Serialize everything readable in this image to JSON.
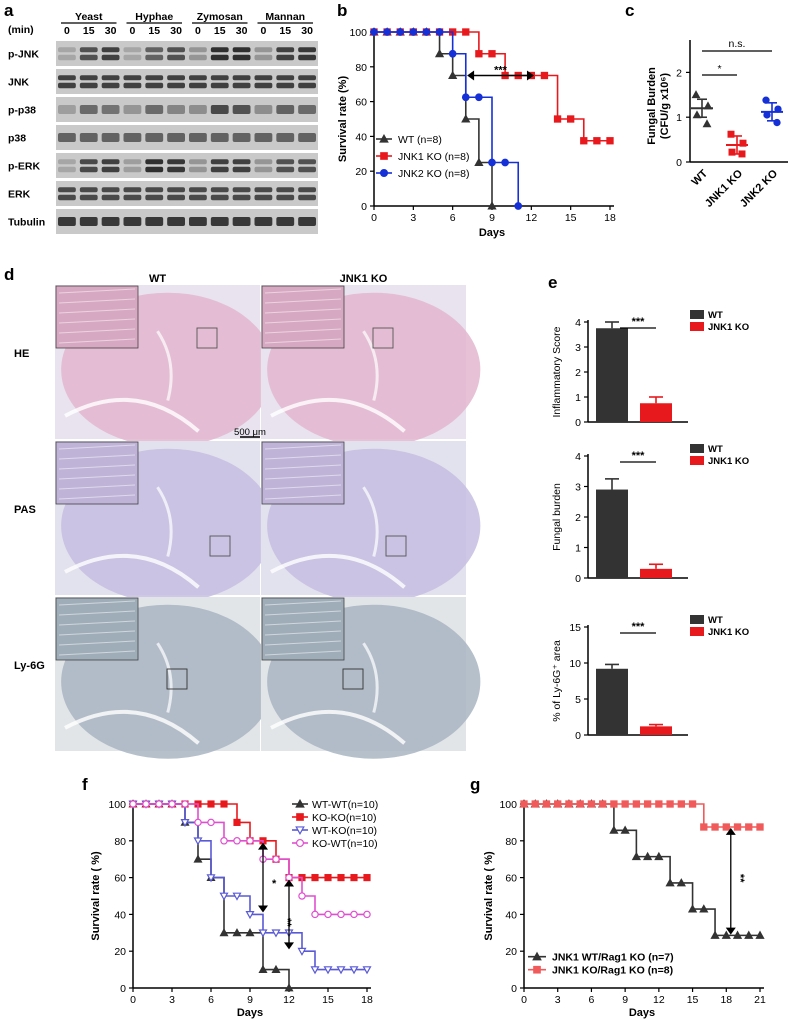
{
  "panels": {
    "a": "a",
    "b": "b",
    "c": "c",
    "d": "d",
    "e": "e",
    "f": "f",
    "g": "g"
  },
  "panel_a": {
    "min_label": "(min)",
    "groups": [
      "Yeast",
      "Hyphae",
      "Zymosan",
      "Mannan"
    ],
    "timepoints": [
      "0",
      "15",
      "30"
    ],
    "rows": [
      "p-JNK",
      "JNK",
      "p-p38",
      "p38",
      "p-ERK",
      "ERK",
      "Tubulin"
    ]
  },
  "panel_d": {
    "columns": [
      "WT",
      "JNK1 KO"
    ],
    "rows": [
      "HE",
      "PAS",
      "Ly-6G"
    ],
    "scale_bar": "500 μm"
  },
  "chart_data": [
    {
      "id": "b",
      "type": "line",
      "subtype": "kaplan-meier",
      "xlabel": "Days",
      "ylabel": "Survival rate (%)",
      "xlim": [
        0,
        18
      ],
      "ylim": [
        0,
        100
      ],
      "xticks": [
        0,
        3,
        6,
        9,
        12,
        15,
        18
      ],
      "yticks": [
        0,
        20,
        40,
        60,
        80,
        100
      ],
      "series": [
        {
          "name": "WT (n=8)",
          "color": "#333333",
          "marker": "triangle",
          "steps": [
            [
              0,
              100
            ],
            [
              5,
              87.5
            ],
            [
              6,
              75
            ],
            [
              7,
              50
            ],
            [
              8,
              25
            ],
            [
              9,
              0
            ]
          ]
        },
        {
          "name": "JNK1 KO (n=8)",
          "color": "#e8191d",
          "marker": "square",
          "steps": [
            [
              0,
              100
            ],
            [
              8,
              87.5
            ],
            [
              10,
              75
            ],
            [
              14,
              50
            ],
            [
              16,
              37.5
            ],
            [
              18,
              37.5
            ]
          ]
        },
        {
          "name": "JNK2 KO (n=8)",
          "color": "#1530d6",
          "marker": "circle",
          "steps": [
            [
              0,
              100
            ],
            [
              6,
              87.5
            ],
            [
              7,
              62.5
            ],
            [
              8,
              62.5
            ],
            [
              9,
              25
            ],
            [
              11,
              0
            ]
          ]
        }
      ],
      "annotations": [
        {
          "text": "***"
        }
      ]
    },
    {
      "id": "c",
      "type": "scatter",
      "ylabel": "Fungal Burden (CFU/g x10^6)",
      "ylabel_line1": "Fungal Burden",
      "ylabel_line2": "(CFU/g x10⁶)",
      "ylim": [
        0,
        2.5
      ],
      "yticks": [
        0,
        1,
        2
      ],
      "categories": [
        "WT",
        "JNK1 KO",
        "JNK2 KO"
      ],
      "series": [
        {
          "name": "WT",
          "color": "#333333",
          "marker": "triangle",
          "points": [
            1.5,
            1.25,
            1.05,
            0.85
          ],
          "mean": 1.2
        },
        {
          "name": "JNK1 KO",
          "color": "#e8191d",
          "marker": "square",
          "points": [
            0.62,
            0.42,
            0.22,
            0.18
          ],
          "mean": 0.38
        },
        {
          "name": "JNK2 KO",
          "color": "#1530d6",
          "marker": "circle",
          "points": [
            1.38,
            1.18,
            1.05,
            0.88
          ],
          "mean": 1.12
        }
      ],
      "annotations": [
        {
          "text": "*"
        },
        {
          "text": "n.s."
        }
      ]
    },
    {
      "id": "e1",
      "type": "bar",
      "ylabel": "Inflammatory Score",
      "ylim": [
        0,
        4
      ],
      "yticks": [
        0,
        1,
        2,
        3,
        4
      ],
      "categories": [
        "WT",
        "JNK1 KO"
      ],
      "values": [
        3.75,
        0.75
      ],
      "errors": [
        0.25,
        0.25
      ],
      "colors": [
        "#333333",
        "#e8191d"
      ],
      "legend": [
        "WT",
        "JNK1 KO"
      ],
      "annotation": "***"
    },
    {
      "id": "e2",
      "type": "bar",
      "ylabel": "Fungal burden",
      "ylim": [
        0,
        4
      ],
      "yticks": [
        0,
        1,
        2,
        3,
        4
      ],
      "categories": [
        "WT",
        "JNK1 KO"
      ],
      "values": [
        2.9,
        0.3
      ],
      "errors": [
        0.35,
        0.15
      ],
      "colors": [
        "#333333",
        "#e8191d"
      ],
      "legend": [
        "WT",
        "JNK1 KO"
      ],
      "annotation": "***"
    },
    {
      "id": "e3",
      "type": "bar",
      "ylabel": "% of Ly-6G⁺ area",
      "ylim": [
        0,
        15
      ],
      "yticks": [
        0,
        5,
        10,
        15
      ],
      "categories": [
        "WT",
        "JNK1 KO"
      ],
      "values": [
        9.2,
        1.2
      ],
      "errors": [
        0.6,
        0.25
      ],
      "colors": [
        "#333333",
        "#e8191d"
      ],
      "legend": [
        "WT",
        "JNK1 KO"
      ],
      "annotation": "***"
    },
    {
      "id": "f",
      "type": "line",
      "subtype": "kaplan-meier",
      "xlabel": "Days",
      "ylabel": "Survival rate ( %)",
      "xlim": [
        0,
        18
      ],
      "ylim": [
        0,
        100
      ],
      "xticks": [
        0,
        3,
        6,
        9,
        12,
        15,
        18
      ],
      "yticks": [
        0,
        20,
        40,
        60,
        80,
        100
      ],
      "series": [
        {
          "name": "WT-WT(n=10)",
          "color": "#333333",
          "marker": "triangle",
          "open": false,
          "steps": [
            [
              0,
              100
            ],
            [
              4,
              90
            ],
            [
              5,
              70
            ],
            [
              6,
              60
            ],
            [
              7,
              30
            ],
            [
              9,
              30
            ],
            [
              10,
              10
            ],
            [
              12,
              0
            ]
          ]
        },
        {
          "name": "KO-KO(n=10)",
          "color": "#e8191d",
          "marker": "square",
          "open": false,
          "steps": [
            [
              0,
              100
            ],
            [
              8,
              90
            ],
            [
              9,
              80
            ],
            [
              11,
              70
            ],
            [
              12,
              60
            ],
            [
              18,
              60
            ]
          ]
        },
        {
          "name": "WT-KO(n=10)",
          "color": "#5a5ad6",
          "marker": "triangle-down",
          "open": true,
          "steps": [
            [
              0,
              100
            ],
            [
              4,
              90
            ],
            [
              5,
              80
            ],
            [
              6,
              60
            ],
            [
              7,
              50
            ],
            [
              9,
              40
            ],
            [
              10,
              30
            ],
            [
              13,
              20
            ],
            [
              14,
              10
            ],
            [
              18,
              10
            ]
          ]
        },
        {
          "name": "KO-WT(n=10)",
          "color": "#e04fd0",
          "marker": "circle",
          "open": true,
          "steps": [
            [
              0,
              100
            ],
            [
              5,
              90
            ],
            [
              7,
              80
            ],
            [
              10,
              70
            ],
            [
              12,
              60
            ],
            [
              13,
              50
            ],
            [
              14,
              40
            ],
            [
              18,
              40
            ]
          ]
        }
      ],
      "annotations": [
        {
          "text": "*"
        },
        {
          "text": "**"
        }
      ]
    },
    {
      "id": "g",
      "type": "line",
      "subtype": "kaplan-meier",
      "xlabel": "Days",
      "ylabel": "Survival rate ( %)",
      "xlim": [
        0,
        21
      ],
      "ylim": [
        0,
        100
      ],
      "xticks": [
        0,
        3,
        6,
        9,
        12,
        15,
        18,
        21
      ],
      "yticks": [
        0,
        20,
        40,
        60,
        80,
        100
      ],
      "series": [
        {
          "name": "JNK1 WT/Rag1 KO (n=7)",
          "color": "#333333",
          "marker": "triangle",
          "steps": [
            [
              0,
              100
            ],
            [
              8,
              85.7
            ],
            [
              10,
              71.4
            ],
            [
              13,
              57.1
            ],
            [
              15,
              42.9
            ],
            [
              17,
              28.6
            ],
            [
              21,
              28.6
            ]
          ]
        },
        {
          "name": "JNK1 KO/Rag1 KO (n=8)",
          "color": "#f05a5a",
          "marker": "square",
          "steps": [
            [
              0,
              100
            ],
            [
              16,
              87.5
            ],
            [
              21,
              87.5
            ]
          ]
        }
      ],
      "annotations": [
        {
          "text": "**"
        }
      ]
    }
  ]
}
